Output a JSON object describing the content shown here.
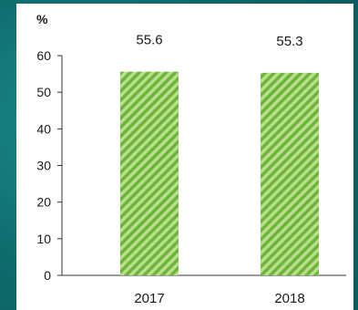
{
  "chart_data": {
    "type": "bar",
    "categories": [
      "2017",
      "2018"
    ],
    "values": [
      55.6,
      55.3
    ],
    "data_labels": [
      "55.6",
      "55.3"
    ],
    "unit_label": "%",
    "y_ticks": [
      "0",
      "10",
      "20",
      "30",
      "40",
      "50",
      "60"
    ],
    "ylim": [
      0,
      60
    ],
    "grid": false,
    "bar_color": "#7ac143",
    "bar_hatch": "diagonal"
  }
}
